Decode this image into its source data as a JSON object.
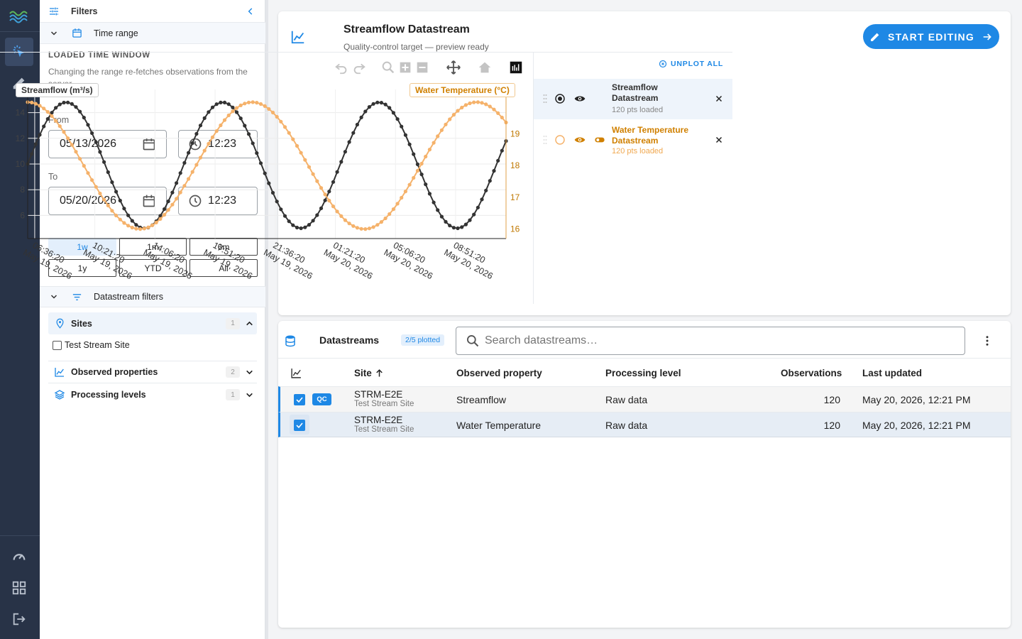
{
  "filters": {
    "title": "Filters",
    "time_range": {
      "title": "Time range",
      "heading": "LOADED TIME WINDOW",
      "description": "Changing the range re-fetches observations from the server.",
      "from_label": "From",
      "from_date": "05/13/2026",
      "from_time": "12:23",
      "to_label": "To",
      "to_date": "05/20/2026",
      "to_time": "12:23",
      "ranges": [
        "1w",
        "1m",
        "6m",
        "1y",
        "YTD",
        "All"
      ],
      "selected_range": "1w"
    },
    "datastream_filters": {
      "title": "Datastream filters",
      "sites": {
        "label": "Sites",
        "count": "1",
        "options": [
          "Test Stream Site"
        ]
      },
      "observed_properties": {
        "label": "Observed properties",
        "count": "2"
      },
      "processing_levels": {
        "label": "Processing levels",
        "count": "1"
      }
    }
  },
  "header": {
    "title": "Streamflow Datastream",
    "subtitle": "Quality-control target — preview ready",
    "start_button": "START EDITING"
  },
  "chart_panel": {
    "unplot_all": "UNPLOT ALL",
    "legend": [
      {
        "name": "Streamflow Datastream",
        "sub": "120 pts loaded",
        "color": "#333333"
      },
      {
        "name": "Water Temperature Datastream",
        "sub": "120 pts loaded",
        "color": "#d08000"
      }
    ]
  },
  "chart_data": {
    "type": "line",
    "series": [
      {
        "name": "Streamflow (m³/s)",
        "axis": "left",
        "color": "#333333",
        "points": 120,
        "min": 5.0,
        "max": 14.8,
        "start": 10.0,
        "period_hours": 9.75
      },
      {
        "name": "Water Temperature (°C)",
        "axis": "right",
        "color": "#f5b26b",
        "points": 120,
        "min": 16.0,
        "max": 20.0,
        "start": 20.0,
        "period_hours": 14.0
      }
    ],
    "yleft": {
      "label": "Streamflow (m³/s)",
      "ticks": [
        "6",
        "8",
        "10",
        "12",
        "14"
      ],
      "range": [
        4.2,
        15.8
      ]
    },
    "yright": {
      "label": "Water Temperature (°C)",
      "ticks": [
        "16",
        "17",
        "18",
        "19"
      ],
      "range": [
        15.7,
        20.4
      ]
    },
    "x_ticks": [
      {
        "time": "06:36:20",
        "date": "May 19, 2026"
      },
      {
        "time": "10:21:20",
        "date": "May 19, 2026"
      },
      {
        "time": "14:06:20",
        "date": "May 19, 2026"
      },
      {
        "time": "17:51:20",
        "date": "May 19, 2026"
      },
      {
        "time": "21:36:20",
        "date": "May 19, 2026"
      },
      {
        "time": "01:21:20",
        "date": "May 20, 2026"
      },
      {
        "time": "05:06:20",
        "date": "May 20, 2026"
      },
      {
        "time": "08:51:20",
        "date": "May 20, 2026"
      }
    ],
    "x_range": [
      "May 19, 2026 06:10",
      "May 20, 2026 12:00"
    ]
  },
  "datastreams": {
    "title": "Datastreams",
    "plotted_badge": "2/5 plotted",
    "search_placeholder": "Search datastreams…",
    "columns": [
      "Site",
      "Observed property",
      "Processing level",
      "Observations",
      "Last updated"
    ],
    "rows": [
      {
        "site": "STRM-E2E",
        "site_name": "Test Stream Site",
        "property": "Streamflow",
        "level": "Raw data",
        "observations": "120",
        "updated": "May 20, 2026, 12:21 PM",
        "qc": "QC"
      },
      {
        "site": "STRM-E2E",
        "site_name": "Test Stream Site",
        "property": "Water Temperature",
        "level": "Raw data",
        "observations": "120",
        "updated": "May 20, 2026, 12:21 PM",
        "qc": ""
      }
    ]
  }
}
